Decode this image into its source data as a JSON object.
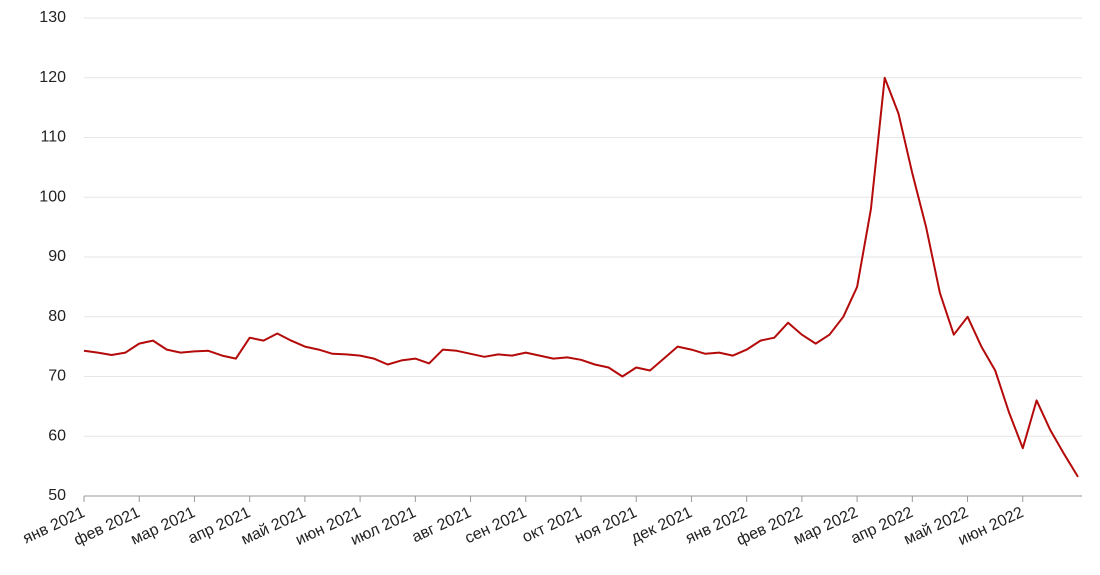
{
  "chart_data": {
    "type": "line",
    "categories": [
      "янв 2021",
      null,
      null,
      null,
      "фев 2021",
      null,
      null,
      null,
      "мар 2021",
      null,
      null,
      null,
      "апр 2021",
      null,
      null,
      null,
      "май 2021",
      null,
      null,
      null,
      "июн 2021",
      null,
      null,
      null,
      "июл 2021",
      null,
      null,
      null,
      "авг 2021",
      null,
      null,
      null,
      "сен 2021",
      null,
      null,
      null,
      "окт 2021",
      null,
      null,
      null,
      "ноя 2021",
      null,
      null,
      null,
      "дек 2021",
      null,
      null,
      null,
      "янв 2022",
      null,
      null,
      null,
      "фев 2022",
      null,
      null,
      null,
      "мар 2022",
      null,
      null,
      null,
      "апр 2022",
      null,
      null,
      null,
      "май 2022",
      null,
      null,
      null,
      "июн 2022",
      null,
      null,
      null,
      null
    ],
    "series": [
      {
        "color": "#b40a0a",
        "values": [
          74.3,
          74.0,
          73.6,
          74.0,
          75.5,
          76.0,
          74.5,
          74.0,
          74.2,
          74.3,
          73.5,
          73.0,
          76.5,
          76.0,
          77.2,
          76.0,
          75.0,
          74.5,
          73.8,
          73.7,
          73.5,
          73.0,
          72.0,
          72.7,
          73.0,
          72.2,
          74.5,
          74.3,
          73.8,
          73.3,
          73.7,
          73.5,
          74.0,
          73.5,
          73.0,
          73.2,
          72.8,
          72.0,
          71.5,
          70.0,
          71.5,
          71.0,
          73.0,
          75.0,
          74.5,
          73.8,
          74.0,
          73.5,
          74.5,
          76.0,
          76.5,
          79.0,
          77.0,
          75.5,
          77.0,
          80.0,
          85.0,
          98.0,
          120.0,
          114.0,
          104.0,
          95.0,
          84.0,
          77.0,
          80.0,
          75.0,
          71.0,
          64.0,
          58.0,
          66.0,
          61.0,
          57.0,
          53.2
        ]
      }
    ],
    "ylim": [
      50,
      130
    ],
    "yticks": [
      50,
      60,
      70,
      80,
      90,
      100,
      110,
      120,
      130
    ],
    "grid": true
  }
}
